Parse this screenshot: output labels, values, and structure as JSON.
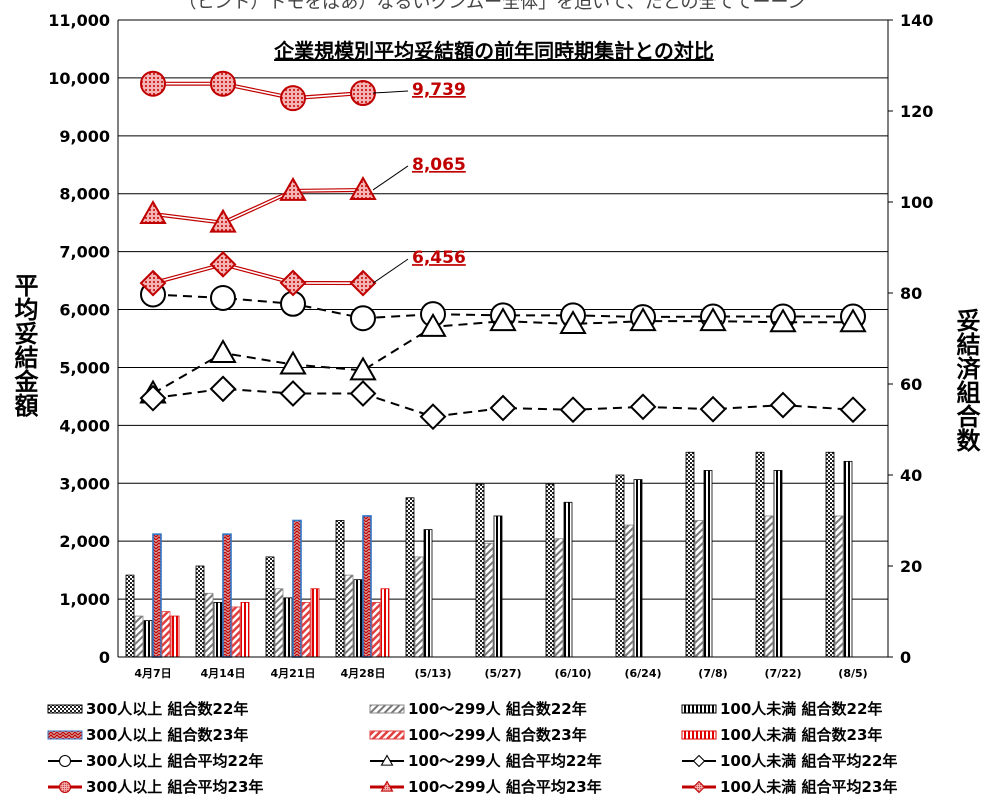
{
  "chart_data": {
    "type": "bar",
    "title": "企業規模別平均妥結額の前年同時期集計との対比",
    "top_text": "（ヒント）トモをばあ）なるいクンムー全体」を迫いて、たとの全ててーーン",
    "ylabel_left": "平均妥結金額",
    "ylabel_right": "妥結済組合数",
    "ylim_left": [
      0,
      11000
    ],
    "ylim_right": [
      0,
      140
    ],
    "yticks_left": [
      "0",
      "1,000",
      "2,000",
      "3,000",
      "4,000",
      "5,000",
      "6,000",
      "7,000",
      "8,000",
      "9,000",
      "10,000",
      "11,000"
    ],
    "yticks_right": [
      "0",
      "20",
      "40",
      "60",
      "80",
      "100",
      "120",
      "140"
    ],
    "categories": [
      "4月7日",
      "4月14日",
      "4月21日",
      "4月28日",
      "(5/13)",
      "(5/27)",
      "(6/10)",
      "(6/24)",
      "(7/8)",
      "(7/22)",
      "(8/5)"
    ],
    "bar_series": [
      {
        "name": "300人以上 組合数22年",
        "axis": "right",
        "values": [
          18,
          20,
          22,
          30,
          35,
          38,
          38,
          40,
          45,
          45,
          45
        ]
      },
      {
        "name": "100～299人 組合数22年",
        "axis": "right",
        "values": [
          9,
          14,
          15,
          18,
          22,
          25,
          26,
          29,
          30,
          31,
          31
        ]
      },
      {
        "name": "100人未満 組合数22年",
        "axis": "right",
        "values": [
          8,
          12,
          13,
          17,
          28,
          31,
          34,
          39,
          41,
          41,
          43
        ]
      },
      {
        "name": "300人以上 組合数23年",
        "axis": "right",
        "values": [
          27,
          27,
          30,
          31,
          null,
          null,
          null,
          null,
          null,
          null,
          null
        ]
      },
      {
        "name": "100～299人 組合数23年",
        "axis": "right",
        "values": [
          10,
          11,
          12,
          12,
          null,
          null,
          null,
          null,
          null,
          null,
          null
        ]
      },
      {
        "name": "100人未満 組合数23年",
        "axis": "right",
        "values": [
          9,
          12,
          15,
          15,
          null,
          null,
          null,
          null,
          null,
          null,
          null
        ]
      }
    ],
    "line_series": [
      {
        "name": "300人以上 組合平均22年",
        "axis": "left",
        "values": [
          6260,
          6200,
          6100,
          5850,
          5920,
          5900,
          5900,
          5870,
          5880,
          5880,
          5880
        ]
      },
      {
        "name": "100～299人 組合平均22年",
        "axis": "left",
        "values": [
          4550,
          5250,
          5050,
          4950,
          5700,
          5800,
          5750,
          5800,
          5800,
          5780,
          5780
        ]
      },
      {
        "name": "100人未満 組合平均22年",
        "axis": "left",
        "values": [
          4470,
          4630,
          4550,
          4550,
          4150,
          4300,
          4270,
          4320,
          4280,
          4350,
          4270
        ]
      },
      {
        "name": "300人以上 組合平均23年",
        "axis": "left",
        "values": [
          9900,
          9900,
          9650,
          9739,
          null,
          null,
          null,
          null,
          null,
          null,
          null
        ]
      },
      {
        "name": "100～299人 組合平均23年",
        "axis": "left",
        "values": [
          7650,
          7500,
          8050,
          8065,
          null,
          null,
          null,
          null,
          null,
          null,
          null
        ]
      },
      {
        "name": "100人未満 組合平均23年",
        "axis": "left",
        "values": [
          6456,
          6780,
          6460,
          6456,
          null,
          null,
          null,
          null,
          null,
          null,
          null
        ]
      }
    ],
    "annotations": [
      "9,739",
      "8,065",
      "6,456"
    ],
    "colors": {
      "red": "#c00000",
      "blue": "#2e75c6",
      "black": "#000000",
      "pink": "#f4b4b4"
    },
    "grid": true,
    "legend_position": "bottom"
  }
}
